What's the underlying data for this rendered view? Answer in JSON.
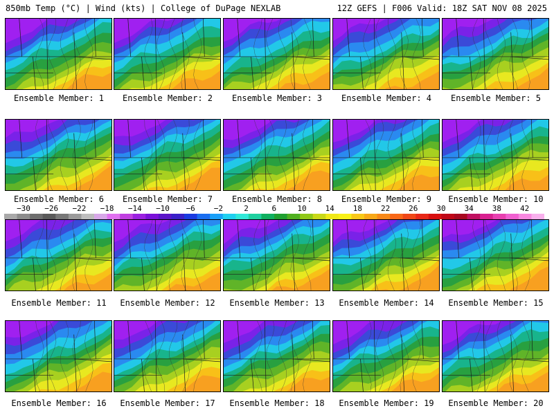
{
  "header": {
    "left": "850mb Temp (°C) | Wind (kts) | College of DuPage NEXLAB",
    "right": "12Z GEFS | F006 Valid: 18Z SAT NOV 08 2025"
  },
  "members": [
    "Ensemble Member: 1",
    "Ensemble Member: 2",
    "Ensemble Member: 3",
    "Ensemble Member: 4",
    "Ensemble Member: 5",
    "Ensemble Member: 6",
    "Ensemble Member: 7",
    "Ensemble Member: 8",
    "Ensemble Member: 9",
    "Ensemble Member: 10",
    "Ensemble Member: 11",
    "Ensemble Member: 12",
    "Ensemble Member: 13",
    "Ensemble Member: 14",
    "Ensemble Member: 15",
    "Ensemble Member: 16",
    "Ensemble Member: 17",
    "Ensemble Member: 18",
    "Ensemble Member: 19",
    "Ensemble Member: 20"
  ],
  "colorbar": {
    "ticks": [
      "−30",
      "−26",
      "−22",
      "−18",
      "−14",
      "−10",
      "−6",
      "−2",
      "2",
      "6",
      "10",
      "14",
      "18",
      "22",
      "26",
      "30",
      "34",
      "38",
      "42"
    ],
    "colors": [
      "#a9a9a9",
      "#8c8c8c",
      "#6e6e6e",
      "#5a5a5a",
      "#787878",
      "#9a9a9a",
      "#bdbdbd",
      "#d8a8e8",
      "#e070f0",
      "#c040e0",
      "#9b20e0",
      "#7a10d8",
      "#5a14c8",
      "#3a20c8",
      "#1a3ae0",
      "#1a6ef0",
      "#1aa0f8",
      "#20d0f0",
      "#30e8d8",
      "#20d0a0",
      "#10b060",
      "#20a030",
      "#50b020",
      "#90c818",
      "#c8d818",
      "#f0e818",
      "#f8f018",
      "#f8c818",
      "#f8a818",
      "#f88818",
      "#f86818",
      "#f04818",
      "#e82818",
      "#d81010",
      "#c00818",
      "#a80820",
      "#c01060",
      "#d82090",
      "#e840b0",
      "#f060d0",
      "#f888e0",
      "#f8b0ec"
    ]
  }
}
